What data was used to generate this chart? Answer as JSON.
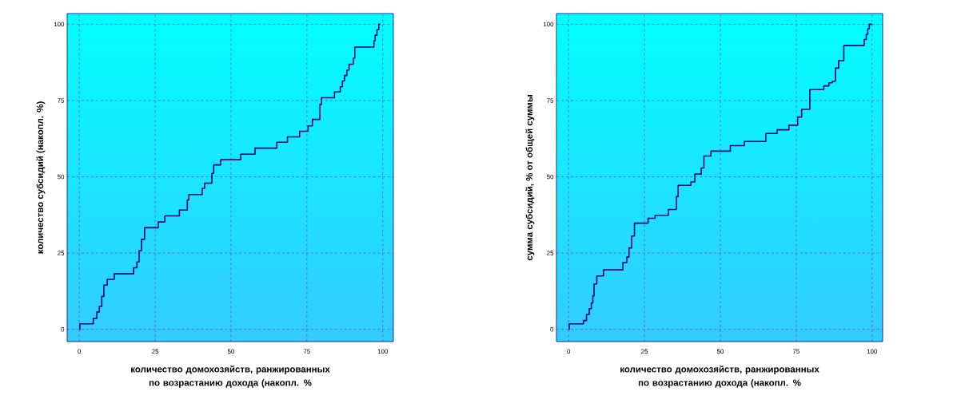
{
  "chart_data": [
    {
      "type": "step",
      "xlabel": "количество домохозяйств, ранжированных по возрастанию дохода (накопл. %",
      "ylabel": "количество субсидий (накопл. %)",
      "xlim": [
        -4,
        103.5
      ],
      "ylim": [
        -4,
        103.5
      ],
      "xticks": [
        0,
        25,
        50,
        75,
        100
      ],
      "yticks": [
        0,
        25,
        50,
        75,
        100
      ],
      "grid": true,
      "line_style": "solid",
      "marker": "none",
      "series": [
        {
          "color": "#000080",
          "x": [
            0,
            0.2,
            4.6,
            5.8,
            6.6,
            7.4,
            8.1,
            9.2,
            11.5,
            17.9,
            19.0,
            19.7,
            20.5,
            21.5,
            26.0,
            28.2,
            33.0,
            35.6,
            36.1,
            40.5,
            41.3,
            43.7,
            44.3,
            46.6,
            53.2,
            57.9,
            65.1,
            68.6,
            72.6,
            75.4,
            76.8,
            79.3,
            79.8,
            84.1,
            86.0,
            86.7,
            87.4,
            88.2,
            88.9,
            90.3,
            90.8,
            97.1,
            97.5,
            98.1,
            98.7,
            99.2
          ],
          "values": [
            0,
            1.8,
            3.6,
            5.7,
            7.5,
            10.8,
            14.5,
            16.4,
            18.2,
            20.2,
            22.1,
            25.8,
            29.5,
            33.3,
            35.2,
            37.2,
            39.1,
            42.4,
            44.2,
            46.2,
            47.9,
            51.1,
            53.9,
            55.6,
            57.4,
            59.4,
            61.3,
            63.1,
            64.9,
            66.7,
            68.8,
            73.7,
            75.9,
            77.8,
            79.5,
            81.4,
            83.2,
            85.0,
            86.9,
            88.9,
            92.5,
            94.6,
            96.4,
            98.2,
            100,
            100
          ]
        }
      ]
    },
    {
      "type": "step",
      "xlabel": "количество домохозяйств, ранжированных по возрастанию дохода (накопл. %",
      "ylabel": "сумма субсидий, % от общей суммы",
      "xlim": [
        -4,
        103.5
      ],
      "ylim": [
        -4,
        103.5
      ],
      "xticks": [
        0,
        25,
        50,
        75,
        100
      ],
      "yticks": [
        0,
        25,
        50,
        75,
        100
      ],
      "grid": true,
      "line_style": "solid",
      "marker": "none",
      "series": [
        {
          "color": "#000080",
          "x": [
            0,
            0.2,
            4.9,
            5.9,
            6.8,
            7.5,
            8.0,
            8.4,
            9.3,
            11.5,
            17.9,
            19.2,
            19.9,
            20.8,
            21.7,
            26.2,
            28.5,
            32.9,
            35.5,
            36.1,
            40.3,
            41.6,
            43.7,
            44.6,
            46.9,
            53.3,
            57.9,
            65.0,
            68.7,
            72.6,
            75.5,
            76.8,
            79.5,
            84.1,
            85.8,
            86.9,
            87.9,
            89.0,
            90.7,
            97.4,
            98.1,
            98.6,
            99.1,
            100
          ],
          "values": [
            0,
            1.8,
            2.9,
            4.9,
            6.8,
            8.7,
            11.0,
            14.9,
            17.5,
            19.5,
            21.9,
            23.7,
            26.7,
            30.6,
            34.8,
            36.4,
            37.4,
            39.3,
            43.5,
            47.2,
            48.3,
            50.9,
            52.9,
            56.8,
            58.4,
            60.2,
            61.6,
            64.2,
            65.4,
            66.9,
            69.6,
            72.1,
            78.6,
            79.8,
            80.8,
            81.3,
            85.6,
            88.1,
            93.0,
            95.0,
            96.7,
            98.5,
            100,
            100
          ]
        }
      ]
    }
  ]
}
